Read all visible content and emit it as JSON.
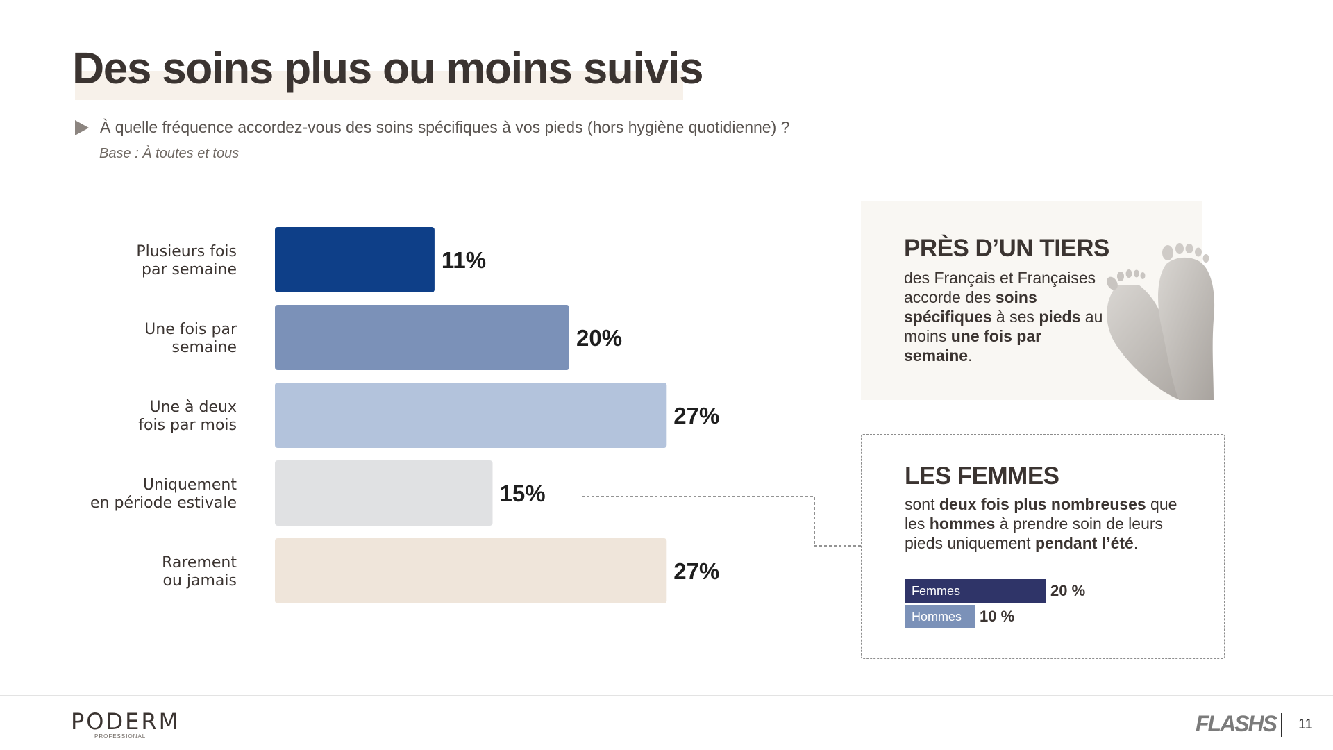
{
  "slide": {
    "title": "Des soins plus ou moins suivis",
    "question": "À quelle fréquence accordez-vous des soins spécifiques à vos pieds (hors hygiène quotidienne) ?",
    "base": "Base : À toutes et tous"
  },
  "chart_data": {
    "type": "bar",
    "orientation": "horizontal",
    "title": "À quelle fréquence accordez-vous des soins spécifiques à vos pieds (hors hygiène quotidienne) ?",
    "categories": [
      [
        "Plusieurs fois",
        "par semaine"
      ],
      [
        "Une fois par",
        "semaine"
      ],
      [
        "Une à deux",
        "fois par mois"
      ],
      [
        "Uniquement",
        "en période estivale"
      ],
      [
        "Rarement",
        "ou jamais"
      ]
    ],
    "values": [
      11,
      20,
      27,
      15,
      27
    ],
    "value_labels": [
      "11%",
      "20%",
      "27%",
      "15%",
      "27%"
    ],
    "colors": [
      "#0e3f88",
      "#7b91b8",
      "#b3c3dc",
      "#e0e1e3",
      "#efe5da"
    ],
    "xlim": [
      0,
      30
    ],
    "grid": false,
    "legend": "none"
  },
  "callout_tiers": {
    "heading": "PRÈS D’UN TIERS",
    "text": {
      "p1": "des Français et Françaises accorde des ",
      "b1": "soins spécifiques",
      "p2": " à ses ",
      "b2": "pieds",
      "p3": " au moins ",
      "b3": "une fois par semaine",
      "p4": "."
    },
    "icon": "feet-icon"
  },
  "callout_femmes": {
    "heading": "LES FEMMES",
    "text": {
      "p1": "sont ",
      "b1": "deux fois plus nombreuses",
      "p2": " que les ",
      "b2": "hommes",
      "p3": " à prendre soin de leurs pieds uniquement ",
      "b3": "pendant l’été",
      "p4": "."
    },
    "bars": [
      {
        "label": "Femmes",
        "value": 20,
        "value_label": "20 %",
        "color": "#2f3468"
      },
      {
        "label": "Hommes",
        "value": 10,
        "value_label": "10 %",
        "color": "#7b91b8"
      }
    ]
  },
  "footer": {
    "logo_main": "PODERM",
    "logo_sub": "PROFESSIONAL",
    "brand": "FLASHS",
    "page_number": "11"
  }
}
